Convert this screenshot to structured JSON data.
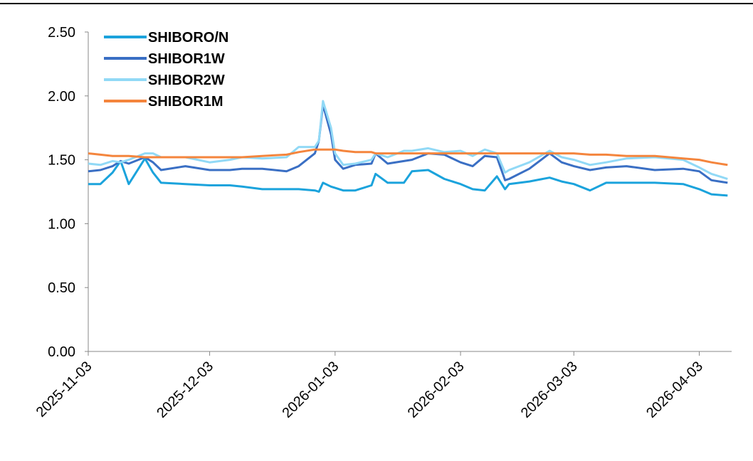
{
  "chart_data": {
    "type": "line",
    "x": [
      "2025-11-03",
      "2025-11-06",
      "2025-11-09",
      "2025-11-11",
      "2025-11-13",
      "2025-11-17",
      "2025-11-19",
      "2025-11-21",
      "2025-11-27",
      "2025-12-03",
      "2025-12-08",
      "2025-12-11",
      "2025-12-16",
      "2025-12-22",
      "2025-12-25",
      "2025-12-29",
      "2025-12-30",
      "2025-12-31",
      "2026-01-02",
      "2026-01-03",
      "2026-01-05",
      "2026-01-08",
      "2026-01-12",
      "2026-01-13",
      "2026-01-16",
      "2026-01-20",
      "2026-01-22",
      "2026-01-26",
      "2026-01-30",
      "2026-02-03",
      "2026-02-06",
      "2026-02-09",
      "2026-02-12",
      "2026-02-14",
      "2026-02-15",
      "2026-02-20",
      "2026-02-25",
      "2026-02-28",
      "2026-03-03",
      "2026-03-07",
      "2026-03-11",
      "2026-03-16",
      "2026-03-23",
      "2026-03-30",
      "2026-04-03",
      "2026-04-06",
      "2026-04-10"
    ],
    "series": [
      {
        "name": "SHIBORO/N",
        "color": "#1ba3dc",
        "values": [
          1.31,
          1.31,
          1.4,
          1.49,
          1.31,
          1.51,
          1.4,
          1.32,
          1.31,
          1.3,
          1.3,
          1.29,
          1.27,
          1.27,
          1.27,
          1.26,
          1.25,
          1.32,
          1.29,
          1.28,
          1.26,
          1.26,
          1.3,
          1.39,
          1.32,
          1.32,
          1.41,
          1.42,
          1.35,
          1.31,
          1.27,
          1.26,
          1.37,
          1.27,
          1.31,
          1.33,
          1.36,
          1.33,
          1.31,
          1.26,
          1.32,
          1.32,
          1.32,
          1.31,
          1.27,
          1.23,
          1.22
        ]
      },
      {
        "name": "SHIBOR1W",
        "color": "#3a6fc4",
        "values": [
          1.41,
          1.42,
          1.45,
          1.49,
          1.47,
          1.52,
          1.48,
          1.42,
          1.45,
          1.42,
          1.42,
          1.43,
          1.43,
          1.41,
          1.45,
          1.55,
          1.65,
          1.93,
          1.7,
          1.5,
          1.43,
          1.46,
          1.47,
          1.55,
          1.47,
          1.49,
          1.5,
          1.55,
          1.54,
          1.48,
          1.45,
          1.53,
          1.52,
          1.34,
          1.35,
          1.43,
          1.55,
          1.48,
          1.45,
          1.42,
          1.44,
          1.45,
          1.42,
          1.43,
          1.41,
          1.34,
          1.32
        ]
      },
      {
        "name": "SHIBOR2W",
        "color": "#91d9f6",
        "values": [
          1.47,
          1.46,
          1.49,
          1.48,
          1.5,
          1.55,
          1.55,
          1.52,
          1.52,
          1.48,
          1.5,
          1.52,
          1.51,
          1.52,
          1.6,
          1.6,
          1.65,
          1.96,
          1.75,
          1.55,
          1.46,
          1.47,
          1.5,
          1.55,
          1.52,
          1.57,
          1.57,
          1.59,
          1.56,
          1.57,
          1.53,
          1.58,
          1.55,
          1.4,
          1.42,
          1.48,
          1.57,
          1.52,
          1.5,
          1.46,
          1.48,
          1.51,
          1.52,
          1.5,
          1.44,
          1.39,
          1.35
        ]
      },
      {
        "name": "SHIBOR1M",
        "color": "#f4853d",
        "values": [
          1.55,
          1.54,
          1.53,
          1.53,
          1.53,
          1.52,
          1.52,
          1.52,
          1.52,
          1.52,
          1.52,
          1.52,
          1.53,
          1.54,
          1.56,
          1.58,
          1.58,
          1.58,
          1.58,
          1.58,
          1.57,
          1.56,
          1.56,
          1.55,
          1.55,
          1.55,
          1.55,
          1.55,
          1.55,
          1.55,
          1.55,
          1.55,
          1.55,
          1.55,
          1.55,
          1.55,
          1.55,
          1.55,
          1.55,
          1.54,
          1.54,
          1.53,
          1.53,
          1.51,
          1.5,
          1.48,
          1.46
        ]
      }
    ],
    "xlim": [
      "2025-11-03",
      "2026-04-11"
    ],
    "xticks": [
      "2025-11-03",
      "2025-12-03",
      "2026-01-03",
      "2026-02-03",
      "2026-03-03",
      "2026-04-03"
    ],
    "ylim": [
      0,
      2.5
    ],
    "yticks": [
      {
        "value": 0,
        "label": "0.00"
      },
      {
        "value": 0.5,
        "label": "0.50"
      },
      {
        "value": 1,
        "label": "1.00"
      },
      {
        "value": 1.5,
        "label": "1.50"
      },
      {
        "value": 2,
        "label": "2.00"
      },
      {
        "value": 2.5,
        "label": "2.50"
      }
    ],
    "legend": "upper left"
  }
}
